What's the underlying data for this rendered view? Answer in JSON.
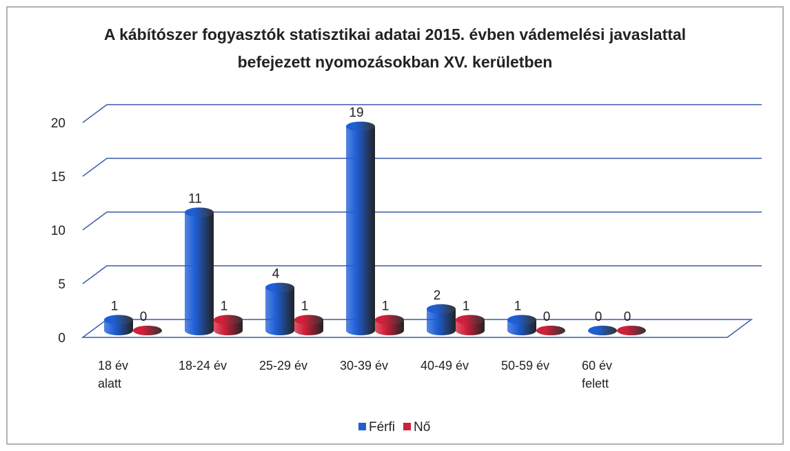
{
  "chart_data": {
    "type": "bar",
    "title": "A kábítószer fogyasztók statisztikai adatai 2015. évben vádemelési javaslattal befejezett nyomozásokban XV. kerületben",
    "categories": [
      "18 év alatt",
      "18-24 év",
      "25-29 év",
      "30-39 év",
      "40-49 év",
      "50-59 év",
      "60 év felett"
    ],
    "series": [
      {
        "name": "Férfi",
        "color": "#1f5fd6",
        "values": [
          1,
          11,
          4,
          19,
          2,
          1,
          0
        ]
      },
      {
        "name": "Nő",
        "color": "#d0203a",
        "values": [
          0,
          1,
          1,
          1,
          1,
          0,
          0
        ]
      }
    ],
    "ylim": [
      0,
      20
    ],
    "yticks": [
      0,
      5,
      10,
      15,
      20
    ],
    "grid": true,
    "legend": "bottom"
  }
}
